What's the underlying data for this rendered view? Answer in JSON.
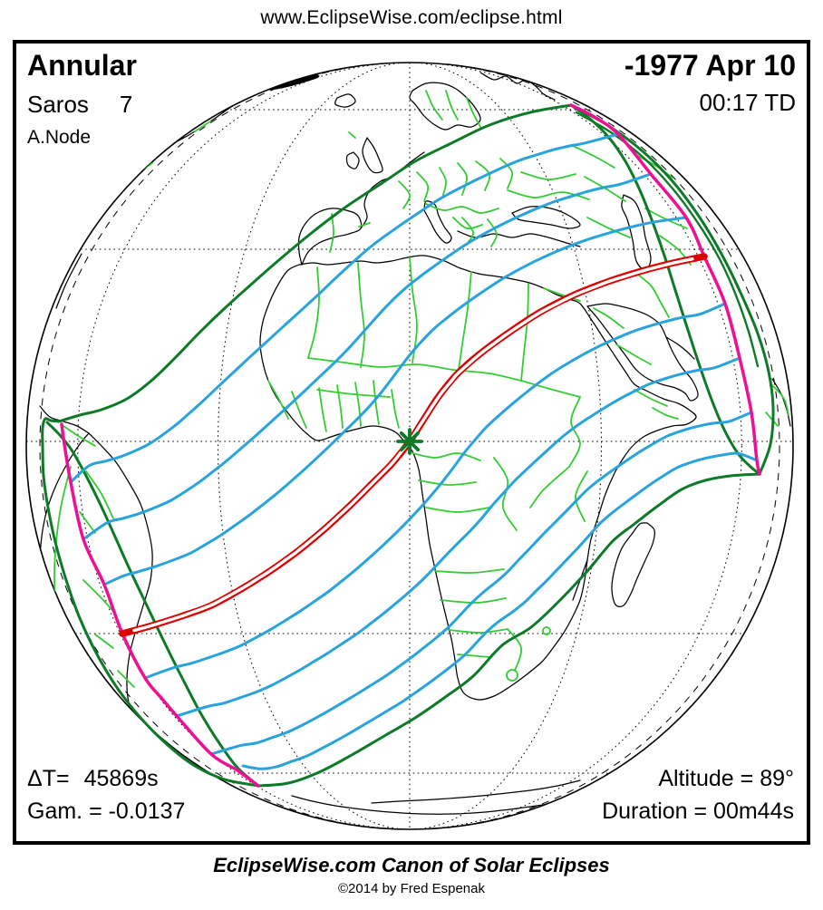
{
  "page": {
    "url_header": "www.EclipseWise.com/eclipse.html"
  },
  "plate": {
    "type_label": "Annular",
    "saros_label": "Saros",
    "saros_number": "7",
    "node_label": "A.Node",
    "date_label": "-1977 Apr 10",
    "time_label": "00:17 TD",
    "delta_t_label": "ΔT=",
    "delta_t_value": "45869s",
    "gamma_label": "Gam. = -0.0137",
    "altitude_label": "Altitude = 89°",
    "duration_label": "Duration = 00m44s"
  },
  "footer": {
    "title": "EclipseWise.com Canon of Solar Eclipses",
    "copyright": "©2014 by Fred Espenak"
  },
  "map": {
    "projection": "orthographic-globe",
    "center_marker": "greatest-eclipse",
    "colors": {
      "central_path": "#dd0000",
      "isolines": "#29a3dc",
      "penumbra_limit": "#0d7a28",
      "sunrise_sunset": "#ee0f95",
      "borders": "#33cc33",
      "coastline": "#000000",
      "graticule": "#000000",
      "marker": "#0d7a28"
    }
  }
}
